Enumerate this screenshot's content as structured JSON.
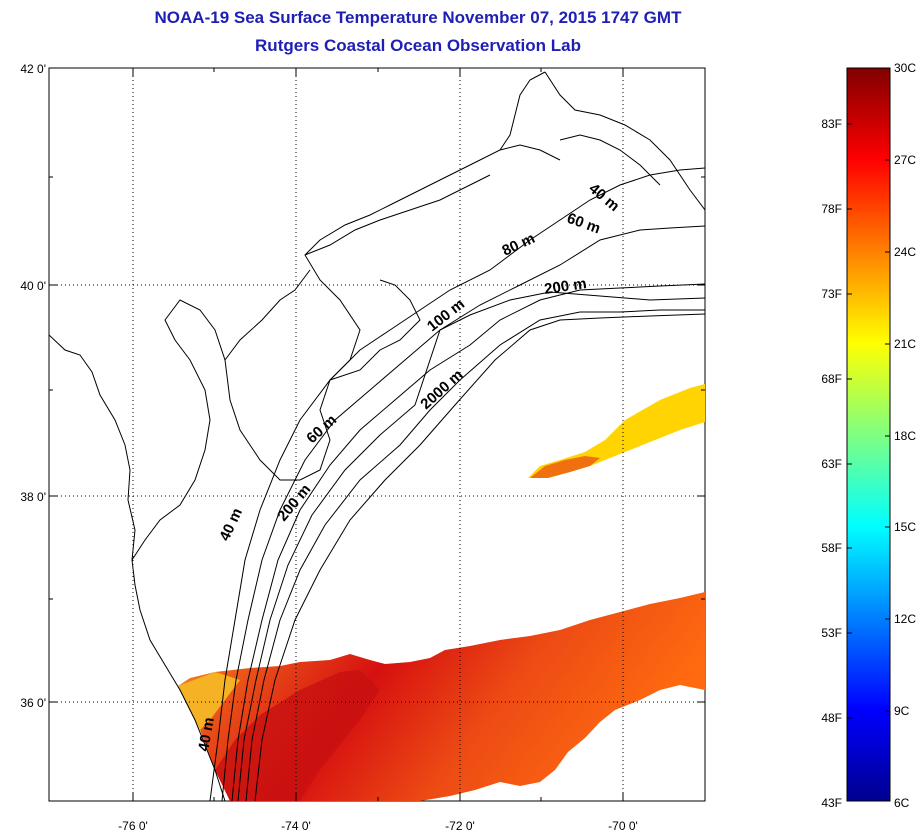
{
  "title": "NOAA-19 Sea Surface Temperature November 07, 2015 1747 GMT",
  "subtitle": "Rutgers Coastal Ocean Observation Lab",
  "map": {
    "lat_ticks": [
      "42 0'",
      "40 0'",
      "38 0'",
      "36 0'"
    ],
    "lon_ticks": [
      "-76 0'",
      "-74 0'",
      "-72 0'",
      "-70 0'"
    ],
    "lon_range": [
      -77,
      -69
    ],
    "lat_range": [
      35,
      42
    ],
    "grid": "dotted",
    "isobath_labels": [
      "40 m",
      "60 m",
      "80 m",
      "200 m",
      "100 m",
      "2000 m",
      "60 m",
      "200 m",
      "40 m",
      "40 m"
    ]
  },
  "colorbar": {
    "fahrenheit_labels": [
      "83F",
      "78F",
      "73F",
      "68F",
      "63F",
      "58F",
      "53F",
      "48F",
      "43F"
    ],
    "celsius_labels": [
      "30C",
      "27C",
      "24C",
      "21C",
      "18C",
      "15C",
      "12C",
      "9C",
      "6C"
    ],
    "colors": [
      "#800000",
      "#ff0000",
      "#ff8000",
      "#ffff00",
      "#80ff80",
      "#00ffff",
      "#0080ff",
      "#0000ff",
      "#00008f"
    ]
  }
}
